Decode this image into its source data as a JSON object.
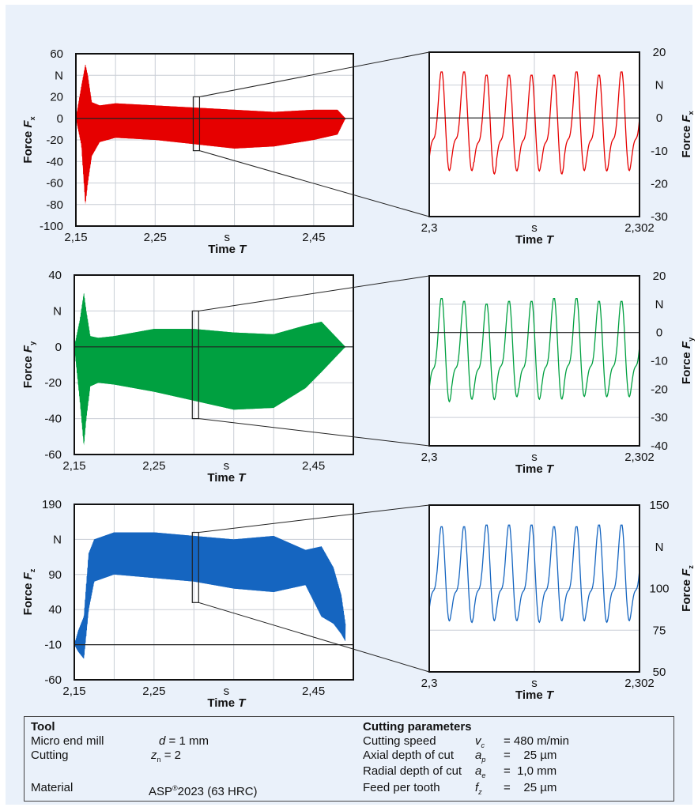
{
  "chart_data": [
    {
      "type": "line",
      "name": "fx-overview",
      "series_color": "#e60000",
      "ylabel": "Force F",
      "ylabel_sub": "x",
      "yunit": "N",
      "xlabel": "Time T",
      "xunit": "s",
      "xlim": [
        2.15,
        2.5
      ],
      "ylim": [
        -100,
        60
      ],
      "yticks": [
        "60",
        "",
        "20",
        "0",
        "-20",
        "-40",
        "-60",
        "-80",
        "-100"
      ],
      "ytick_values": [
        60,
        40,
        20,
        0,
        -20,
        -40,
        -60,
        -80,
        -100
      ],
      "xticks": [
        "2,15",
        "2,25",
        "2,45"
      ],
      "xtick_values": [
        2.15,
        2.25,
        2.45
      ],
      "envelope": {
        "x": [
          2.15,
          2.157,
          2.162,
          2.165,
          2.17,
          2.18,
          2.2,
          2.25,
          2.3,
          2.35,
          2.4,
          2.45,
          2.48,
          2.49
        ],
        "upper": [
          0,
          30,
          50,
          40,
          15,
          12,
          14,
          12,
          10,
          8,
          6,
          8,
          8,
          0
        ],
        "lower": [
          0,
          -25,
          -80,
          -60,
          -35,
          -22,
          -18,
          -20,
          -24,
          -28,
          -26,
          -20,
          -15,
          0
        ]
      },
      "zoom_window": {
        "x": [
          2.3,
          2.302
        ],
        "y": [
          -30,
          20
        ]
      }
    },
    {
      "type": "line",
      "name": "fx-detail",
      "series_color": "#e60000",
      "ylabel": "Force F",
      "ylabel_sub": "x",
      "yunit": "N",
      "xlabel": "Time T",
      "xunit": "s",
      "xlim": [
        2.3,
        2.302
      ],
      "ylim": [
        -30,
        20
      ],
      "yticks": [
        "20",
        "",
        "0",
        "-10",
        "-20",
        "-30"
      ],
      "ytick_values": [
        20,
        10,
        0,
        -10,
        -20,
        -30
      ],
      "xticks": [
        "2,3",
        "2,302"
      ],
      "xtick_values": [
        2.3,
        2.302
      ],
      "peaks_max": [
        14,
        14,
        13,
        13,
        13,
        13,
        14,
        13,
        14
      ],
      "peaks_min": [
        -19,
        -19,
        -20,
        -19,
        -19,
        -20,
        -19,
        -19,
        -19,
        -19
      ]
    },
    {
      "type": "line",
      "name": "fy-overview",
      "series_color": "#00a040",
      "ylabel": "Force F",
      "ylabel_sub": "y",
      "yunit": "N",
      "xlabel": "Time T",
      "xunit": "s",
      "xlim": [
        2.15,
        2.5
      ],
      "ylim": [
        -60,
        40
      ],
      "yticks": [
        "40",
        "",
        "0",
        "-20",
        "-40",
        "-60"
      ],
      "ytick_values": [
        40,
        20,
        0,
        -20,
        -40,
        -60
      ],
      "xticks": [
        "2,15",
        "2,25",
        "2,45"
      ],
      "xtick_values": [
        2.15,
        2.25,
        2.45
      ],
      "envelope": {
        "x": [
          2.15,
          2.157,
          2.162,
          2.165,
          2.17,
          2.18,
          2.2,
          2.25,
          2.3,
          2.35,
          2.4,
          2.44,
          2.46,
          2.49
        ],
        "upper": [
          0,
          15,
          30,
          20,
          6,
          5,
          6,
          10,
          10,
          8,
          7,
          12,
          14,
          0
        ],
        "lower": [
          0,
          -30,
          -55,
          -40,
          -22,
          -20,
          -21,
          -25,
          -30,
          -35,
          -34,
          -23,
          -14,
          0
        ]
      },
      "zoom_window": {
        "x": [
          2.3,
          2.302
        ],
        "y": [
          -40,
          20
        ]
      }
    },
    {
      "type": "line",
      "name": "fy-detail",
      "series_color": "#00a040",
      "ylabel": "Force F",
      "ylabel_sub": "y",
      "yunit": "N",
      "xlabel": "Time T",
      "xunit": "s",
      "xlim": [
        2.3,
        2.302
      ],
      "ylim": [
        -40,
        20
      ],
      "yticks": [
        "20",
        "",
        "0",
        "-10",
        "-20",
        "-30",
        "-40"
      ],
      "ytick_values": [
        20,
        10,
        0,
        -10,
        -20,
        -30,
        -40
      ],
      "xticks": [
        "2,3",
        "2,302"
      ],
      "xtick_values": [
        2.3,
        2.302
      ],
      "peaks_max": [
        12,
        11,
        10,
        11,
        11,
        12,
        12,
        11,
        11
      ],
      "peaks_min": [
        -28,
        -27,
        -27,
        -26,
        -27,
        -27,
        -26,
        -26,
        -26,
        -26
      ]
    },
    {
      "type": "line",
      "name": "fz-overview",
      "series_color": "#1565c0",
      "ylabel": "Force F",
      "ylabel_sub": "z",
      "yunit": "N",
      "xlabel": "Time T",
      "xunit": "s",
      "xlim": [
        2.15,
        2.5
      ],
      "ylim": [
        -60,
        190
      ],
      "yticks": [
        "190",
        "",
        "90",
        "40",
        "-10",
        "-60"
      ],
      "ytick_values": [
        190,
        140,
        90,
        40,
        -10,
        -60
      ],
      "xticks": [
        "2,15",
        "2,25",
        "2,45"
      ],
      "xtick_values": [
        2.15,
        2.25,
        2.45
      ],
      "envelope": {
        "x": [
          2.15,
          2.155,
          2.162,
          2.168,
          2.175,
          2.2,
          2.25,
          2.3,
          2.35,
          2.4,
          2.44,
          2.46,
          2.475,
          2.485,
          2.49
        ],
        "upper": [
          -10,
          10,
          30,
          120,
          140,
          150,
          150,
          145,
          140,
          145,
          125,
          130,
          100,
          60,
          20
        ],
        "lower": [
          -10,
          -20,
          -30,
          40,
          80,
          90,
          85,
          80,
          70,
          65,
          75,
          30,
          20,
          5,
          -5
        ]
      },
      "zoom_window": {
        "x": [
          2.3,
          2.302
        ],
        "y": [
          50,
          150
        ]
      }
    },
    {
      "type": "line",
      "name": "fz-detail",
      "series_color": "#1565c0",
      "ylabel": "Force F",
      "ylabel_sub": "z",
      "yunit": "N",
      "xlabel": "Time T",
      "xunit": "s",
      "xlim": [
        2.3,
        2.302
      ],
      "ylim": [
        50,
        150
      ],
      "yticks": [
        "150",
        "",
        "100",
        "75",
        "50"
      ],
      "ytick_values": [
        150,
        125,
        100,
        75,
        50
      ],
      "xticks": [
        "2,3",
        "2,302"
      ],
      "xtick_values": [
        2.3,
        2.302
      ],
      "peaks_max": [
        137,
        137,
        138,
        138,
        138,
        137,
        137,
        138,
        138
      ],
      "peaks_min": [
        75,
        74,
        75,
        75,
        74,
        75,
        75,
        74,
        75,
        75
      ]
    }
  ],
  "params": {
    "tool_title": "Tool",
    "tool_name": "Micro end mill",
    "diameter_symbol": "d",
    "diameter_value": "= 1 mm",
    "cutting_label": "Cutting",
    "teeth_symbol": "z",
    "teeth_sub": "n",
    "teeth_value": "= 2",
    "material_label": "Material",
    "material_prefix": "ASP",
    "material_sup": "®",
    "material_suffix": "2023 (63 HRC)",
    "cutting_title": "Cutting parameters",
    "speed_label": "Cutting speed",
    "speed_symbol": "v",
    "speed_sub": "c",
    "speed_value": "= 480 m/min",
    "axial_label": "Axial depth of cut",
    "axial_symbol": "a",
    "axial_sub": "p",
    "axial_value": "=    25 µm",
    "radial_label": "Radial depth of cut",
    "radial_symbol": "a",
    "radial_sub": "e",
    "radial_value": "=  1,0 mm",
    "feed_label": "Feed per tooth",
    "feed_symbol": "f",
    "feed_sub": "z",
    "feed_value": "=    25 µm"
  }
}
